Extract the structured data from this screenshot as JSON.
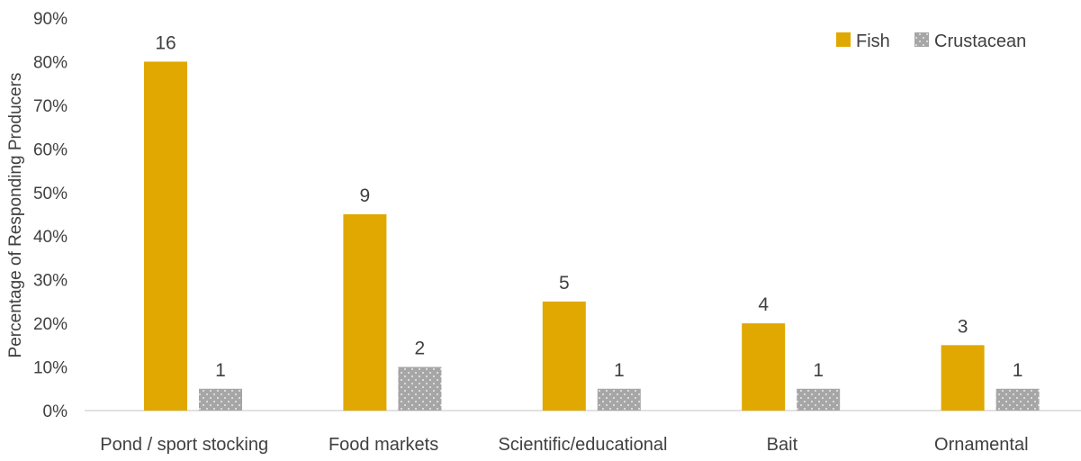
{
  "chart_data": {
    "type": "bar",
    "categories": [
      "Pond / sport stocking",
      "Food markets",
      "Scientific/educational",
      "Bait",
      "Ornamental"
    ],
    "series": [
      {
        "name": "Fish",
        "values": [
          80,
          45,
          25,
          20,
          15
        ],
        "labels": [
          "16",
          "9",
          "5",
          "4",
          "3"
        ],
        "color": "#E0A800"
      },
      {
        "name": "Crustacean",
        "values": [
          5,
          10,
          5,
          5,
          5
        ],
        "labels": [
          "1",
          "2",
          "1",
          "1",
          "1"
        ],
        "color": "#A6A6A6"
      }
    ],
    "ylabel": "Percentage of Responding Producers",
    "ylim": [
      0,
      90
    ],
    "yticks": [
      "0%",
      "10%",
      "20%",
      "30%",
      "40%",
      "50%",
      "60%",
      "70%",
      "80%",
      "90%"
    ],
    "grid": false,
    "legend_position": "top-right"
  }
}
